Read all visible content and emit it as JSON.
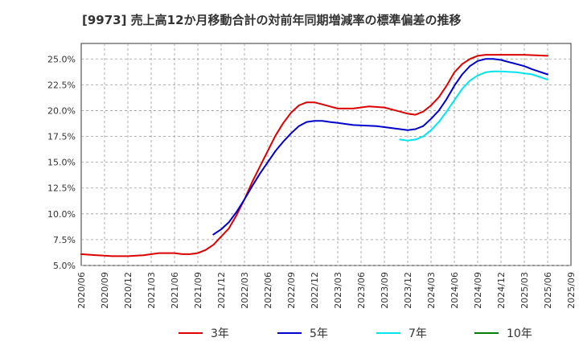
{
  "title": "[9973]  売上高12か月移動合計の対前年同期増減率の標準偏差の推移",
  "chart_data": {
    "type": "line",
    "title": "[9973]  売上高12か月移動合計の対前年同期増減率の標準偏差の推移",
    "xlabel": "",
    "ylabel": "",
    "x_ticks": [
      "2020/06",
      "2020/09",
      "2020/12",
      "2021/03",
      "2021/06",
      "2021/09",
      "2021/12",
      "2022/03",
      "2022/06",
      "2022/09",
      "2022/12",
      "2023/03",
      "2023/06",
      "2023/09",
      "2023/12",
      "2024/03",
      "2024/06",
      "2024/09",
      "2024/12",
      "2025/03",
      "2025/06",
      "2025/09"
    ],
    "y_ticks": [
      "5.0%",
      "7.5%",
      "10.0%",
      "12.5%",
      "15.0%",
      "17.5%",
      "20.0%",
      "22.5%",
      "25.0%"
    ],
    "ylim": [
      5.0,
      26.5
    ],
    "grid": true,
    "legend_position": "bottom",
    "series": [
      {
        "name": "3年",
        "color": "#dd0000",
        "points": [
          [
            "2020/06",
            6.1
          ],
          [
            "2020/08",
            6.0
          ],
          [
            "2020/10",
            5.9
          ],
          [
            "2020/12",
            5.9
          ],
          [
            "2021/02",
            6.0
          ],
          [
            "2021/04",
            6.2
          ],
          [
            "2021/06",
            6.2
          ],
          [
            "2021/07",
            6.1
          ],
          [
            "2021/08",
            6.1
          ],
          [
            "2021/09",
            6.2
          ],
          [
            "2021/10",
            6.5
          ],
          [
            "2021/11",
            7.0
          ],
          [
            "2021/12",
            7.8
          ],
          [
            "2022/01",
            8.6
          ],
          [
            "2022/02",
            9.9
          ],
          [
            "2022/03",
            11.4
          ],
          [
            "2022/04",
            13.1
          ],
          [
            "2022/05",
            14.6
          ],
          [
            "2022/06",
            16.1
          ],
          [
            "2022/07",
            17.6
          ],
          [
            "2022/08",
            18.8
          ],
          [
            "2022/09",
            19.8
          ],
          [
            "2022/10",
            20.5
          ],
          [
            "2022/11",
            20.8
          ],
          [
            "2022/12",
            20.8
          ],
          [
            "2023/01",
            20.6
          ],
          [
            "2023/02",
            20.4
          ],
          [
            "2023/03",
            20.2
          ],
          [
            "2023/05",
            20.2
          ],
          [
            "2023/07",
            20.4
          ],
          [
            "2023/09",
            20.3
          ],
          [
            "2023/10",
            20.1
          ],
          [
            "2023/11",
            19.9
          ],
          [
            "2023/12",
            19.7
          ],
          [
            "2024/01",
            19.6
          ],
          [
            "2024/02",
            19.9
          ],
          [
            "2024/03",
            20.5
          ],
          [
            "2024/04",
            21.3
          ],
          [
            "2024/05",
            22.4
          ],
          [
            "2024/06",
            23.7
          ],
          [
            "2024/07",
            24.5
          ],
          [
            "2024/08",
            25.0
          ],
          [
            "2024/09",
            25.3
          ],
          [
            "2024/10",
            25.4
          ],
          [
            "2024/12",
            25.4
          ],
          [
            "2025/03",
            25.4
          ],
          [
            "2025/06",
            25.3
          ]
        ]
      },
      {
        "name": "5年",
        "color": "#0000cc",
        "points": [
          [
            "2021/11",
            8.0
          ],
          [
            "2021/12",
            8.5
          ],
          [
            "2022/01",
            9.2
          ],
          [
            "2022/02",
            10.2
          ],
          [
            "2022/03",
            11.4
          ],
          [
            "2022/04",
            12.7
          ],
          [
            "2022/05",
            13.9
          ],
          [
            "2022/06",
            15.0
          ],
          [
            "2022/07",
            16.1
          ],
          [
            "2022/08",
            17.0
          ],
          [
            "2022/09",
            17.8
          ],
          [
            "2022/10",
            18.5
          ],
          [
            "2022/11",
            18.9
          ],
          [
            "2022/12",
            19.0
          ],
          [
            "2023/01",
            19.0
          ],
          [
            "2023/02",
            18.9
          ],
          [
            "2023/03",
            18.8
          ],
          [
            "2023/05",
            18.6
          ],
          [
            "2023/08",
            18.5
          ],
          [
            "2023/10",
            18.3
          ],
          [
            "2023/11",
            18.2
          ],
          [
            "2023/12",
            18.1
          ],
          [
            "2024/01",
            18.2
          ],
          [
            "2024/02",
            18.5
          ],
          [
            "2024/03",
            19.2
          ],
          [
            "2024/04",
            20.0
          ],
          [
            "2024/05",
            21.1
          ],
          [
            "2024/06",
            22.4
          ],
          [
            "2024/07",
            23.5
          ],
          [
            "2024/08",
            24.3
          ],
          [
            "2024/09",
            24.8
          ],
          [
            "2024/10",
            25.0
          ],
          [
            "2024/11",
            25.0
          ],
          [
            "2024/12",
            24.9
          ],
          [
            "2025/01",
            24.7
          ],
          [
            "2025/03",
            24.3
          ],
          [
            "2025/04",
            24.0
          ],
          [
            "2025/06",
            23.5
          ]
        ]
      },
      {
        "name": "7年",
        "color": "#00e5ee",
        "points": [
          [
            "2023/11",
            17.2
          ],
          [
            "2023/12",
            17.1
          ],
          [
            "2024/01",
            17.2
          ],
          [
            "2024/02",
            17.5
          ],
          [
            "2024/03",
            18.1
          ],
          [
            "2024/04",
            18.9
          ],
          [
            "2024/05",
            19.9
          ],
          [
            "2024/06",
            21.0
          ],
          [
            "2024/07",
            22.1
          ],
          [
            "2024/08",
            22.9
          ],
          [
            "2024/09",
            23.4
          ],
          [
            "2024/10",
            23.7
          ],
          [
            "2024/11",
            23.8
          ],
          [
            "2024/12",
            23.8
          ],
          [
            "2025/02",
            23.7
          ],
          [
            "2025/04",
            23.5
          ],
          [
            "2025/06",
            23.0
          ]
        ]
      },
      {
        "name": "10年",
        "color": "#008000",
        "points": []
      }
    ]
  }
}
